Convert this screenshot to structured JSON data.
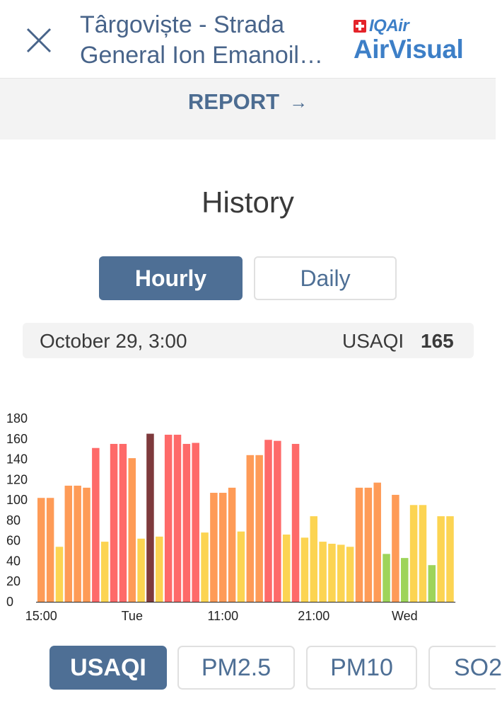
{
  "header": {
    "title_line1": "Târgoviște - Strada",
    "title_line2": "General Ion Emanoil…",
    "brand_small": "IQAir",
    "brand_large": "AirVisual"
  },
  "report": {
    "label": "REPORT",
    "arrow": "→"
  },
  "history": {
    "title": "History",
    "tabs": [
      {
        "label": "Hourly",
        "active": true
      },
      {
        "label": "Daily",
        "active": false
      }
    ]
  },
  "readout": {
    "date": "October 29, 3:00",
    "unit": "USAQI",
    "value": "165"
  },
  "pollutant_tabs": [
    {
      "label": "USAQI",
      "active": true
    },
    {
      "label": "PM2.5",
      "active": false
    },
    {
      "label": "PM10",
      "active": false
    },
    {
      "label": "SO2",
      "active": false
    }
  ],
  "colors": {
    "accent": "#4e6f95",
    "title": "#48648a",
    "brand": "#3d7fc7",
    "aqi_good_moderate_green": "#9ed45a",
    "aqi_moderate": "#fcd452",
    "aqi_sensitive": "#fe9b57",
    "aqi_unhealthy": "#fe6a69",
    "aqi_selected": "#7e3a3c"
  },
  "chart_data": {
    "type": "bar",
    "ylabel": "",
    "xlabel": "",
    "ylim": [
      0,
      180
    ],
    "yticks": [
      0,
      20,
      40,
      60,
      80,
      100,
      120,
      140,
      160,
      180
    ],
    "xtick_labels": [
      {
        "label": "15:00",
        "index": 0
      },
      {
        "label": "Tue",
        "index": 10
      },
      {
        "label": "11:00",
        "index": 20
      },
      {
        "label": "21:00",
        "index": 30
      },
      {
        "label": "Wed",
        "index": 40
      }
    ],
    "selected_index": 12,
    "values": [
      102,
      102,
      54,
      114,
      114,
      112,
      151,
      59,
      155,
      155,
      141,
      62,
      165,
      64,
      164,
      164,
      155,
      156,
      68,
      107,
      107,
      112,
      69,
      144,
      144,
      159,
      158,
      66,
      155,
      63,
      84,
      59,
      57,
      56,
      54,
      112,
      112,
      117,
      47,
      105,
      43,
      95,
      95,
      36,
      84,
      84
    ]
  }
}
